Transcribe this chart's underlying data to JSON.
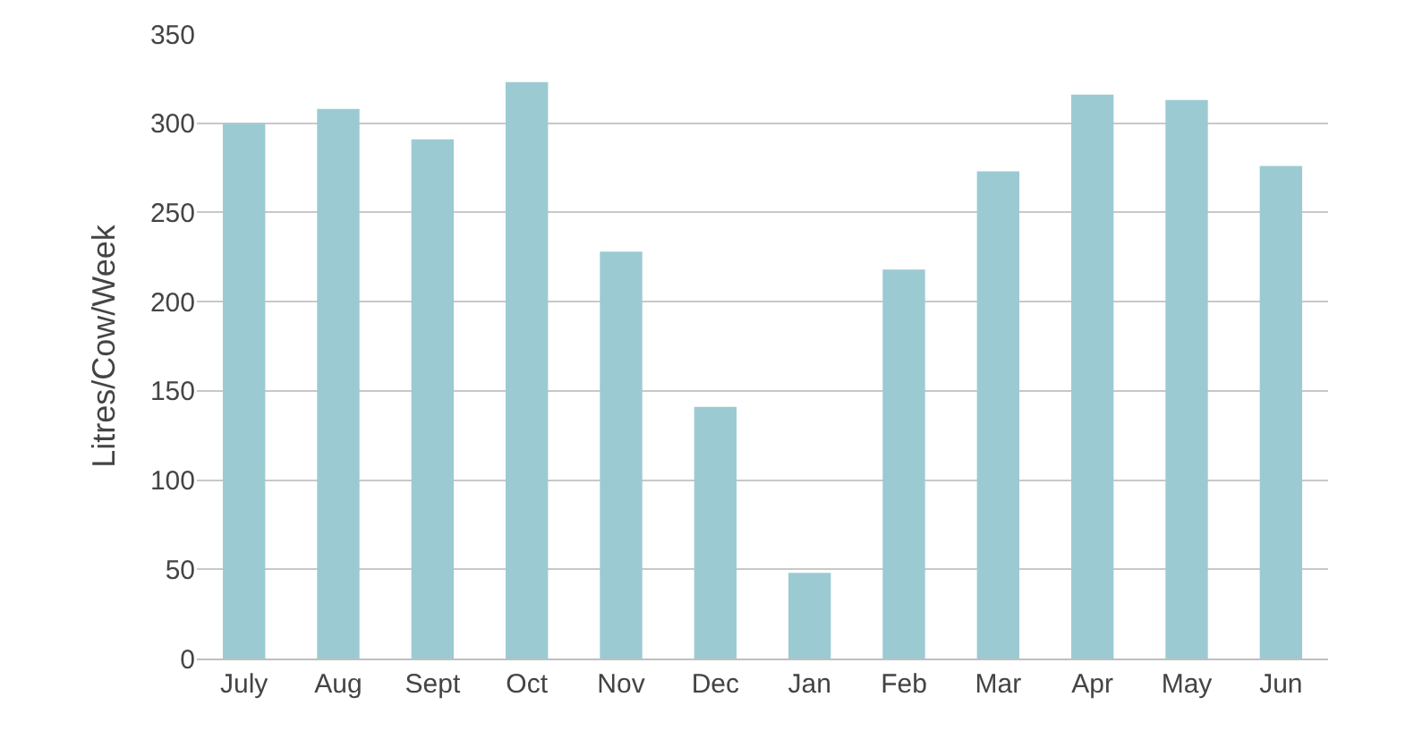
{
  "chart_data": {
    "type": "bar",
    "ylabel": "Litres/Cow/Week",
    "categories": [
      "July",
      "Aug",
      "Sept",
      "Oct",
      "Nov",
      "Dec",
      "Jan",
      "Feb",
      "Mar",
      "Apr",
      "May",
      "Jun"
    ],
    "values": [
      300,
      308,
      291,
      323,
      228,
      141,
      48,
      218,
      273,
      316,
      313,
      276
    ],
    "color": "#9ccad3",
    "ylim": [
      0,
      350
    ],
    "yticks": [
      0,
      50,
      100,
      150,
      200,
      250,
      300,
      350
    ],
    "grid": "y"
  }
}
